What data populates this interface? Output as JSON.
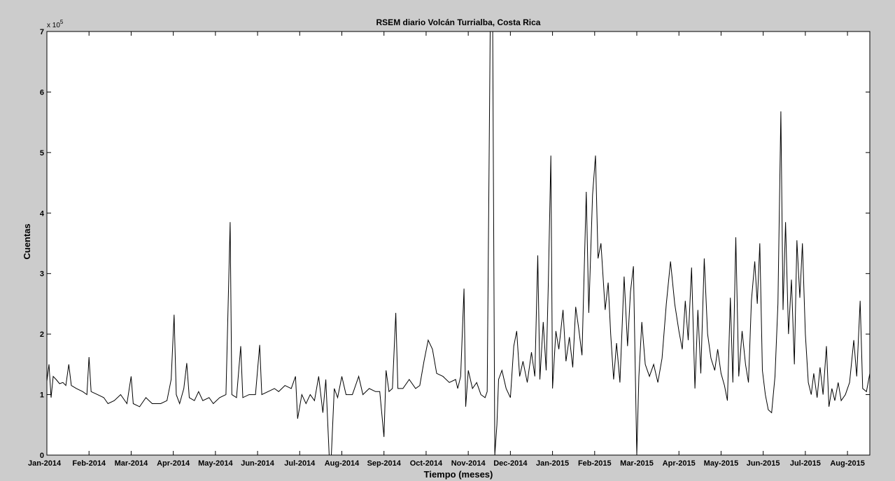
{
  "chart_data": {
    "type": "line",
    "title": "RSEM diario Volcán Turrialba, Costa Rica",
    "xlabel": "Tiempo (meses)",
    "ylabel": "Cuentas",
    "y_exponent_label": "x 10",
    "y_exponent_power": "5",
    "ylim": [
      0,
      7
    ],
    "y_ticks": [
      "0",
      "1",
      "2",
      "3",
      "4",
      "5",
      "6",
      "7"
    ],
    "x_ticks": [
      "Jan-2014",
      "Feb-2014",
      "Mar-2014",
      "Apr-2014",
      "May-2014",
      "Jun-2014",
      "Jul-2014",
      "Aug-2014",
      "Sep-2014",
      "Oct-2014",
      "Nov-2014",
      "Dec-2014",
      "Jan-2015",
      "Feb-2015",
      "Mar-2015",
      "Apr-2015",
      "May-2015",
      "Jun-2015",
      "Jul-2015",
      "Aug-2015"
    ],
    "x_range_months": [
      0,
      19.53
    ],
    "grid": false,
    "series_points": [
      [
        0.0,
        1.22
      ],
      [
        0.05,
        1.5
      ],
      [
        0.1,
        0.95
      ],
      [
        0.15,
        1.3
      ],
      [
        0.22,
        1.25
      ],
      [
        0.3,
        1.18
      ],
      [
        0.38,
        1.2
      ],
      [
        0.45,
        1.15
      ],
      [
        0.52,
        1.5
      ],
      [
        0.58,
        1.15
      ],
      [
        0.7,
        1.1
      ],
      [
        0.85,
        1.05
      ],
      [
        0.95,
        1.0
      ],
      [
        1.0,
        1.62
      ],
      [
        1.05,
        1.05
      ],
      [
        1.2,
        1.0
      ],
      [
        1.35,
        0.95
      ],
      [
        1.45,
        0.85
      ],
      [
        1.6,
        0.9
      ],
      [
        1.75,
        1.0
      ],
      [
        1.9,
        0.85
      ],
      [
        2.0,
        1.3
      ],
      [
        2.05,
        0.85
      ],
      [
        2.2,
        0.8
      ],
      [
        2.35,
        0.95
      ],
      [
        2.5,
        0.85
      ],
      [
        2.7,
        0.85
      ],
      [
        2.85,
        0.9
      ],
      [
        2.95,
        1.25
      ],
      [
        3.02,
        2.32
      ],
      [
        3.07,
        1.0
      ],
      [
        3.15,
        0.85
      ],
      [
        3.25,
        1.1
      ],
      [
        3.32,
        1.52
      ],
      [
        3.38,
        0.95
      ],
      [
        3.5,
        0.9
      ],
      [
        3.6,
        1.05
      ],
      [
        3.7,
        0.9
      ],
      [
        3.85,
        0.95
      ],
      [
        3.95,
        0.85
      ],
      [
        4.1,
        0.95
      ],
      [
        4.25,
        1.0
      ],
      [
        4.35,
        3.85
      ],
      [
        4.39,
        1.0
      ],
      [
        4.5,
        0.95
      ],
      [
        4.6,
        1.8
      ],
      [
        4.65,
        0.95
      ],
      [
        4.8,
        1.0
      ],
      [
        4.95,
        1.0
      ],
      [
        5.05,
        1.82
      ],
      [
        5.1,
        1.0
      ],
      [
        5.25,
        1.05
      ],
      [
        5.4,
        1.1
      ],
      [
        5.5,
        1.05
      ],
      [
        5.65,
        1.15
      ],
      [
        5.8,
        1.1
      ],
      [
        5.9,
        1.3
      ],
      [
        5.95,
        0.6
      ],
      [
        6.05,
        1.0
      ],
      [
        6.15,
        0.85
      ],
      [
        6.25,
        1.0
      ],
      [
        6.35,
        0.9
      ],
      [
        6.45,
        1.3
      ],
      [
        6.55,
        0.7
      ],
      [
        6.62,
        1.25
      ],
      [
        6.7,
        0.0
      ],
      [
        6.75,
        0.0
      ],
      [
        6.82,
        1.1
      ],
      [
        6.9,
        0.95
      ],
      [
        7.0,
        1.3
      ],
      [
        7.1,
        1.0
      ],
      [
        7.25,
        1.0
      ],
      [
        7.4,
        1.3
      ],
      [
        7.5,
        1.0
      ],
      [
        7.65,
        1.1
      ],
      [
        7.8,
        1.05
      ],
      [
        7.9,
        1.05
      ],
      [
        8.0,
        0.3
      ],
      [
        8.05,
        1.4
      ],
      [
        8.12,
        1.05
      ],
      [
        8.2,
        1.1
      ],
      [
        8.28,
        2.35
      ],
      [
        8.33,
        1.1
      ],
      [
        8.45,
        1.1
      ],
      [
        8.6,
        1.25
      ],
      [
        8.75,
        1.1
      ],
      [
        8.85,
        1.15
      ],
      [
        8.95,
        1.55
      ],
      [
        9.05,
        1.9
      ],
      [
        9.15,
        1.75
      ],
      [
        9.25,
        1.35
      ],
      [
        9.4,
        1.3
      ],
      [
        9.55,
        1.2
      ],
      [
        9.7,
        1.25
      ],
      [
        9.75,
        1.1
      ],
      [
        9.82,
        1.3
      ],
      [
        9.9,
        2.75
      ],
      [
        9.94,
        0.8
      ],
      [
        10.0,
        1.4
      ],
      [
        10.1,
        1.1
      ],
      [
        10.2,
        1.2
      ],
      [
        10.3,
        1.0
      ],
      [
        10.4,
        0.95
      ],
      [
        10.45,
        1.05
      ],
      [
        10.52,
        7.0
      ],
      [
        10.58,
        7.0
      ],
      [
        10.63,
        0.0
      ],
      [
        10.68,
        0.5
      ],
      [
        10.72,
        1.25
      ],
      [
        10.8,
        1.4
      ],
      [
        10.9,
        1.1
      ],
      [
        11.0,
        0.95
      ],
      [
        11.08,
        1.8
      ],
      [
        11.15,
        2.05
      ],
      [
        11.22,
        1.3
      ],
      [
        11.3,
        1.55
      ],
      [
        11.4,
        1.2
      ],
      [
        11.5,
        1.7
      ],
      [
        11.58,
        1.3
      ],
      [
        11.65,
        3.3
      ],
      [
        11.7,
        1.25
      ],
      [
        11.78,
        2.2
      ],
      [
        11.85,
        1.4
      ],
      [
        11.9,
        2.85
      ],
      [
        11.96,
        4.95
      ],
      [
        12.0,
        1.1
      ],
      [
        12.08,
        2.05
      ],
      [
        12.15,
        1.75
      ],
      [
        12.25,
        2.4
      ],
      [
        12.32,
        1.55
      ],
      [
        12.4,
        1.95
      ],
      [
        12.48,
        1.45
      ],
      [
        12.55,
        2.45
      ],
      [
        12.62,
        2.1
      ],
      [
        12.7,
        1.65
      ],
      [
        12.8,
        4.35
      ],
      [
        12.86,
        2.35
      ],
      [
        12.95,
        4.3
      ],
      [
        13.02,
        4.95
      ],
      [
        13.08,
        3.25
      ],
      [
        13.15,
        3.5
      ],
      [
        13.25,
        2.4
      ],
      [
        13.32,
        2.85
      ],
      [
        13.38,
        2.0
      ],
      [
        13.45,
        1.25
      ],
      [
        13.52,
        1.85
      ],
      [
        13.6,
        1.2
      ],
      [
        13.7,
        2.95
      ],
      [
        13.78,
        1.8
      ],
      [
        13.85,
        2.7
      ],
      [
        13.92,
        3.12
      ],
      [
        14.0,
        0.0
      ],
      [
        14.05,
        1.3
      ],
      [
        14.12,
        2.2
      ],
      [
        14.2,
        1.5
      ],
      [
        14.3,
        1.3
      ],
      [
        14.4,
        1.5
      ],
      [
        14.5,
        1.2
      ],
      [
        14.6,
        1.6
      ],
      [
        14.7,
        2.5
      ],
      [
        14.8,
        3.2
      ],
      [
        14.9,
        2.5
      ],
      [
        15.0,
        2.05
      ],
      [
        15.08,
        1.75
      ],
      [
        15.15,
        2.55
      ],
      [
        15.22,
        1.9
      ],
      [
        15.3,
        3.1
      ],
      [
        15.38,
        1.1
      ],
      [
        15.45,
        2.4
      ],
      [
        15.52,
        1.35
      ],
      [
        15.6,
        3.25
      ],
      [
        15.68,
        2.0
      ],
      [
        15.76,
        1.6
      ],
      [
        15.85,
        1.4
      ],
      [
        15.92,
        1.75
      ],
      [
        16.0,
        1.35
      ],
      [
        16.08,
        1.15
      ],
      [
        16.15,
        0.9
      ],
      [
        16.22,
        2.6
      ],
      [
        16.28,
        1.2
      ],
      [
        16.35,
        3.6
      ],
      [
        16.42,
        1.3
      ],
      [
        16.5,
        2.05
      ],
      [
        16.58,
        1.5
      ],
      [
        16.65,
        1.2
      ],
      [
        16.72,
        2.55
      ],
      [
        16.8,
        3.2
      ],
      [
        16.86,
        2.5
      ],
      [
        16.92,
        3.5
      ],
      [
        16.98,
        1.4
      ],
      [
        17.05,
        1.0
      ],
      [
        17.12,
        0.75
      ],
      [
        17.2,
        0.7
      ],
      [
        17.28,
        1.3
      ],
      [
        17.35,
        2.5
      ],
      [
        17.42,
        5.68
      ],
      [
        17.47,
        2.4
      ],
      [
        17.53,
        3.85
      ],
      [
        17.6,
        2.0
      ],
      [
        17.67,
        2.9
      ],
      [
        17.74,
        1.5
      ],
      [
        17.8,
        3.55
      ],
      [
        17.87,
        2.6
      ],
      [
        17.93,
        3.5
      ],
      [
        18.0,
        2.0
      ],
      [
        18.07,
        1.2
      ],
      [
        18.14,
        1.0
      ],
      [
        18.2,
        1.35
      ],
      [
        18.28,
        0.95
      ],
      [
        18.35,
        1.45
      ],
      [
        18.42,
        1.0
      ],
      [
        18.5,
        1.8
      ],
      [
        18.56,
        0.8
      ],
      [
        18.63,
        1.1
      ],
      [
        18.7,
        0.9
      ],
      [
        18.78,
        1.2
      ],
      [
        18.85,
        0.9
      ],
      [
        18.95,
        1.0
      ],
      [
        19.05,
        1.2
      ],
      [
        19.15,
        1.9
      ],
      [
        19.22,
        1.3
      ],
      [
        19.3,
        2.55
      ],
      [
        19.36,
        1.1
      ],
      [
        19.45,
        1.05
      ],
      [
        19.53,
        1.35
      ]
    ]
  }
}
